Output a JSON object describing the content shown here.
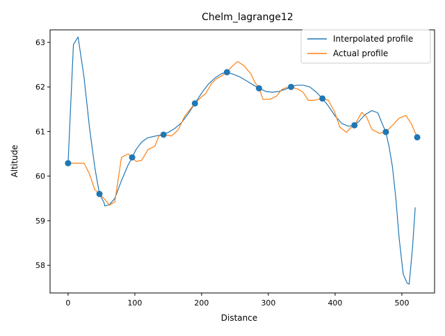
{
  "chart_data": {
    "type": "line",
    "title": "Chelm_lagrange12",
    "xlabel": "Distance",
    "ylabel": "Altitude",
    "xlim": [
      -27,
      549
    ],
    "ylim": [
      57.38,
      63.28
    ],
    "xticks": [
      0,
      100,
      200,
      300,
      400,
      500
    ],
    "yticks": [
      58,
      59,
      60,
      61,
      62,
      63
    ],
    "grid": false,
    "legend_position": "top-right",
    "series": [
      {
        "name": "Interpolated profile",
        "color": "#1f77b4",
        "points": [
          [
            0,
            60.29
          ],
          [
            8,
            62.95
          ],
          [
            15,
            63.12
          ],
          [
            24,
            62.2
          ],
          [
            32,
            61.1
          ],
          [
            40,
            60.2
          ],
          [
            47,
            59.6
          ],
          [
            54,
            59.4
          ],
          [
            55,
            59.33
          ],
          [
            62,
            59.36
          ],
          [
            70,
            59.5
          ],
          [
            80,
            59.9
          ],
          [
            90,
            60.25
          ],
          [
            96,
            60.42
          ],
          [
            102,
            60.6
          ],
          [
            110,
            60.76
          ],
          [
            118,
            60.85
          ],
          [
            128,
            60.89
          ],
          [
            135,
            60.91
          ],
          [
            143,
            60.93
          ],
          [
            150,
            60.98
          ],
          [
            160,
            61.07
          ],
          [
            170,
            61.2
          ],
          [
            180,
            61.4
          ],
          [
            190,
            61.63
          ],
          [
            200,
            61.86
          ],
          [
            210,
            62.06
          ],
          [
            220,
            62.2
          ],
          [
            230,
            62.3
          ],
          [
            238,
            62.33
          ],
          [
            248,
            62.28
          ],
          [
            258,
            62.22
          ],
          [
            268,
            62.13
          ],
          [
            278,
            62.04
          ],
          [
            286,
            61.97
          ],
          [
            296,
            61.9
          ],
          [
            306,
            61.88
          ],
          [
            316,
            61.9
          ],
          [
            326,
            61.95
          ],
          [
            334,
            62.0
          ],
          [
            342,
            62.04
          ],
          [
            352,
            62.04
          ],
          [
            362,
            62.0
          ],
          [
            372,
            61.88
          ],
          [
            381,
            61.74
          ],
          [
            390,
            61.57
          ],
          [
            400,
            61.35
          ],
          [
            410,
            61.18
          ],
          [
            420,
            61.12
          ],
          [
            429,
            61.14
          ],
          [
            437,
            61.25
          ],
          [
            445,
            61.38
          ],
          [
            455,
            61.47
          ],
          [
            464,
            61.42
          ],
          [
            471,
            61.16
          ],
          [
            476,
            60.99
          ],
          [
            481,
            60.65
          ],
          [
            486,
            60.2
          ],
          [
            491,
            59.5
          ],
          [
            496,
            58.6
          ],
          [
            502,
            57.8
          ],
          [
            508,
            57.6
          ],
          [
            511,
            57.58
          ],
          [
            516,
            58.4
          ],
          [
            520,
            59.3
          ]
        ]
      },
      {
        "name": "Actual profile",
        "color": "#ff7f0e",
        "points": [
          [
            0,
            60.29
          ],
          [
            8,
            60.29
          ],
          [
            16,
            60.29
          ],
          [
            24,
            60.29
          ],
          [
            32,
            60.05
          ],
          [
            40,
            59.7
          ],
          [
            47,
            59.6
          ],
          [
            55,
            59.48
          ],
          [
            62,
            59.35
          ],
          [
            70,
            59.42
          ],
          [
            80,
            60.42
          ],
          [
            90,
            60.5
          ],
          [
            96,
            60.42
          ],
          [
            102,
            60.33
          ],
          [
            110,
            60.35
          ],
          [
            120,
            60.6
          ],
          [
            130,
            60.67
          ],
          [
            136,
            60.9
          ],
          [
            143,
            60.93
          ],
          [
            155,
            60.9
          ],
          [
            165,
            61.04
          ],
          [
            175,
            61.35
          ],
          [
            190,
            61.63
          ],
          [
            200,
            61.78
          ],
          [
            206,
            61.85
          ],
          [
            215,
            62.08
          ],
          [
            222,
            62.18
          ],
          [
            230,
            62.25
          ],
          [
            238,
            62.33
          ],
          [
            245,
            62.45
          ],
          [
            254,
            62.57
          ],
          [
            264,
            62.47
          ],
          [
            274,
            62.29
          ],
          [
            280,
            62.1
          ],
          [
            286,
            61.97
          ],
          [
            292,
            61.72
          ],
          [
            302,
            61.72
          ],
          [
            312,
            61.79
          ],
          [
            320,
            61.94
          ],
          [
            326,
            61.98
          ],
          [
            334,
            62.0
          ],
          [
            344,
            61.95
          ],
          [
            352,
            61.88
          ],
          [
            360,
            61.7
          ],
          [
            368,
            61.7
          ],
          [
            375,
            61.72
          ],
          [
            381,
            61.74
          ],
          [
            390,
            61.7
          ],
          [
            399,
            61.45
          ],
          [
            407,
            61.1
          ],
          [
            417,
            60.98
          ],
          [
            423,
            61.08
          ],
          [
            429,
            61.14
          ],
          [
            440,
            61.43
          ],
          [
            447,
            61.33
          ],
          [
            455,
            61.05
          ],
          [
            466,
            60.96
          ],
          [
            476,
            60.99
          ],
          [
            486,
            61.14
          ],
          [
            496,
            61.3
          ],
          [
            506,
            61.36
          ],
          [
            514,
            61.18
          ],
          [
            523,
            60.87
          ]
        ]
      }
    ],
    "markers": {
      "color": "#1f77b4",
      "points": [
        [
          0,
          60.29
        ],
        [
          47,
          59.6
        ],
        [
          96,
          60.42
        ],
        [
          143,
          60.93
        ],
        [
          190,
          61.63
        ],
        [
          238,
          62.33
        ],
        [
          286,
          61.97
        ],
        [
          334,
          62.0
        ],
        [
          381,
          61.74
        ],
        [
          429,
          61.14
        ],
        [
          476,
          60.99
        ],
        [
          523,
          60.87
        ]
      ]
    }
  }
}
